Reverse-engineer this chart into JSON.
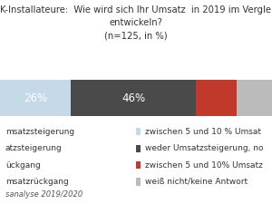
{
  "title_line1": "K-Installateure:  Wie wird sich Ihr Umsatz  in 2019 im Vergle",
  "title_line2": "entwickeln?",
  "title_line3": "(n=125, in %)",
  "bar_segments": [
    26,
    46,
    15,
    13
  ],
  "bar_colors": [
    "#c5d9e8",
    "#4a4a4a",
    "#c0392b",
    "#bbbbbb"
  ],
  "bar_labels": [
    "26%",
    "46%",
    "",
    ""
  ],
  "legend_items_right": [
    {
      "label": "zwischen 5 und 10 % Umsat",
      "color": "#c5d9e8"
    },
    {
      "label": "weder Umsatzsteigerung, no",
      "color": "#4a4a4a"
    },
    {
      "label": "zwischen 5 und 10% Umsatz",
      "color": "#c0392b"
    },
    {
      "label": "weiß nicht/keine Antwort",
      "color": "#bbbbbb"
    }
  ],
  "legend_items_left": [
    "msatzsteigerung",
    "atzsteigerung",
    "ückgang",
    "msatzrückgang"
  ],
  "source": "sanalyse 2019/2020",
  "background_color": "#ffffff",
  "title_fontsize": 7.2,
  "label_fontsize": 8.5,
  "legend_fontsize": 6.5,
  "source_fontsize": 6.0
}
